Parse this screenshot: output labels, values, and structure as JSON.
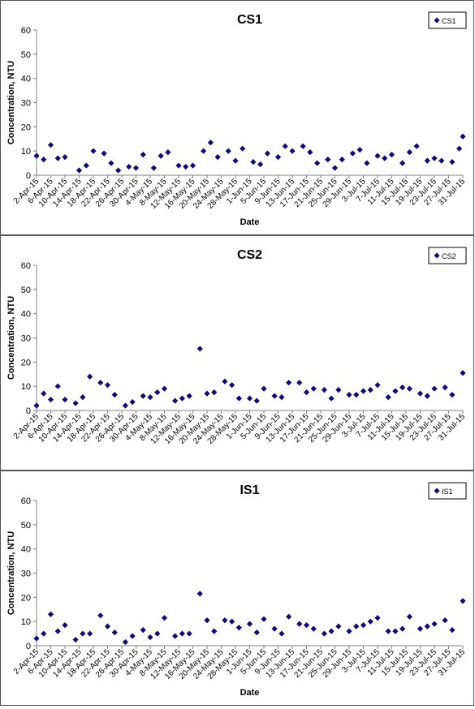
{
  "colors": {
    "marker": "#0a0a7a",
    "axis": "#808080",
    "text": "#000000"
  },
  "chart_data": [
    {
      "type": "scatter",
      "title": "CS1",
      "xlabel": "Date",
      "ylabel": "Concentration, NTU",
      "ylim": [
        0,
        60
      ],
      "yticks": [
        "0",
        "10",
        "20",
        "30",
        "40",
        "50",
        "60"
      ],
      "xtick_labels": [
        "2-Apr-15",
        "6-Apr-15",
        "10-Apr-15",
        "14-Apr-15",
        "18-Apr-15",
        "22-Apr-15",
        "26-Apr-15",
        "30-Apr-15",
        "4-May-15",
        "8-May-15",
        "12-May-15",
        "16-May-15",
        "20-May-15",
        "24-May-15",
        "28-May-15",
        "1-Jun-15",
        "5-Jun-15",
        "9-Jun-15",
        "13-Jun-15",
        "17-Jun-15",
        "21-Jun-15",
        "25-Jun-15",
        "29-Jun-15",
        "3-Jul-15",
        "7-Jul-15",
        "11-Jul-15",
        "15-Jul-15",
        "19-Jul-15",
        "23-Jul-15",
        "27-Jul-15",
        "31-Jul-15"
      ],
      "xlim": [
        "2015-04-02",
        "2015-07-31"
      ],
      "grid": false,
      "legend": "top-right",
      "series": [
        {
          "name": "CS1",
          "points": [
            [
              "2015-04-02",
              8.0
            ],
            [
              "2015-04-04",
              6.5
            ],
            [
              "2015-04-06",
              12.5
            ],
            [
              "2015-04-08",
              7.0
            ],
            [
              "2015-04-10",
              7.5
            ],
            [
              "2015-04-14",
              2.0
            ],
            [
              "2015-04-16",
              4.0
            ],
            [
              "2015-04-18",
              10.0
            ],
            [
              "2015-04-21",
              9.0
            ],
            [
              "2015-04-23",
              5.0
            ],
            [
              "2015-04-25",
              2.0
            ],
            [
              "2015-04-28",
              3.5
            ],
            [
              "2015-04-30",
              3.0
            ],
            [
              "2015-05-02",
              8.5
            ],
            [
              "2015-05-05",
              3.0
            ],
            [
              "2015-05-07",
              8.0
            ],
            [
              "2015-05-09",
              9.5
            ],
            [
              "2015-05-12",
              4.0
            ],
            [
              "2015-05-14",
              3.5
            ],
            [
              "2015-05-16",
              4.0
            ],
            [
              "2015-05-19",
              10.0
            ],
            [
              "2015-05-21",
              13.5
            ],
            [
              "2015-05-23",
              7.5
            ],
            [
              "2015-05-26",
              10.0
            ],
            [
              "2015-05-28",
              6.0
            ],
            [
              "2015-05-30",
              11.0
            ],
            [
              "2015-06-02",
              5.5
            ],
            [
              "2015-06-04",
              4.5
            ],
            [
              "2015-06-06",
              9.0
            ],
            [
              "2015-06-09",
              7.5
            ],
            [
              "2015-06-11",
              12.0
            ],
            [
              "2015-06-13",
              10.0
            ],
            [
              "2015-06-16",
              12.0
            ],
            [
              "2015-06-18",
              9.5
            ],
            [
              "2015-06-20",
              5.0
            ],
            [
              "2015-06-23",
              6.5
            ],
            [
              "2015-06-25",
              3.0
            ],
            [
              "2015-06-27",
              6.5
            ],
            [
              "2015-06-30",
              9.0
            ],
            [
              "2015-07-02",
              10.5
            ],
            [
              "2015-07-04",
              5.0
            ],
            [
              "2015-07-07",
              8.0
            ],
            [
              "2015-07-09",
              7.0
            ],
            [
              "2015-07-11",
              8.5
            ],
            [
              "2015-07-14",
              5.0
            ],
            [
              "2015-07-16",
              9.5
            ],
            [
              "2015-07-18",
              12.0
            ],
            [
              "2015-07-21",
              6.0
            ],
            [
              "2015-07-23",
              7.0
            ],
            [
              "2015-07-25",
              6.0
            ],
            [
              "2015-07-28",
              5.5
            ],
            [
              "2015-07-30",
              11.0
            ],
            [
              "2015-07-31",
              16.0
            ]
          ]
        }
      ]
    },
    {
      "type": "scatter",
      "title": "CS2",
      "xlabel": "",
      "ylabel": "Concentration, NTU",
      "ylim": [
        0,
        60
      ],
      "yticks": [
        "0",
        "10",
        "20",
        "30",
        "40",
        "50",
        "60"
      ],
      "xtick_labels": [
        "2-Apr-15",
        "6-Apr-15",
        "10-Apr-15",
        "14-Apr-15",
        "18-Apr-15",
        "22-Apr-15",
        "26-Apr-15",
        "30-Apr-15",
        "4-May-15",
        "8-May-15",
        "12-May-15",
        "16-May-15",
        "20-May-15",
        "24-May-15",
        "28-May-15",
        "1-Jun-15",
        "5-Jun-15",
        "9-Jun-15",
        "13-Jun-15",
        "17-Jun-15",
        "21-Jun-15",
        "25-Jun-15",
        "29-Jun-15",
        "3-Jul-15",
        "7-Jul-15",
        "11-Jul-15",
        "15-Jul-15",
        "19-Jul-15",
        "23-Jul-15",
        "27-Jul-15",
        "31-Jul-15"
      ],
      "xlim": [
        "2015-04-02",
        "2015-07-31"
      ],
      "grid": false,
      "legend": "top-right",
      "series": [
        {
          "name": "CS2",
          "points": [
            [
              "2015-04-02",
              2.0
            ],
            [
              "2015-04-04",
              7.0
            ],
            [
              "2015-04-06",
              4.5
            ],
            [
              "2015-04-08",
              10.0
            ],
            [
              "2015-04-10",
              4.5
            ],
            [
              "2015-04-13",
              3.0
            ],
            [
              "2015-04-15",
              5.5
            ],
            [
              "2015-04-17",
              14.0
            ],
            [
              "2015-04-20",
              11.5
            ],
            [
              "2015-04-22",
              10.5
            ],
            [
              "2015-04-24",
              6.5
            ],
            [
              "2015-04-27",
              2.0
            ],
            [
              "2015-04-29",
              3.5
            ],
            [
              "2015-05-02",
              6.0
            ],
            [
              "2015-05-04",
              5.5
            ],
            [
              "2015-05-06",
              7.5
            ],
            [
              "2015-05-08",
              9.0
            ],
            [
              "2015-05-11",
              4.0
            ],
            [
              "2015-05-13",
              5.0
            ],
            [
              "2015-05-15",
              6.0
            ],
            [
              "2015-05-18",
              25.5
            ],
            [
              "2015-05-20",
              7.0
            ],
            [
              "2015-05-22",
              7.5
            ],
            [
              "2015-05-25",
              12.0
            ],
            [
              "2015-05-27",
              10.5
            ],
            [
              "2015-05-29",
              5.0
            ],
            [
              "2015-06-01",
              5.0
            ],
            [
              "2015-06-03",
              4.0
            ],
            [
              "2015-06-05",
              9.0
            ],
            [
              "2015-06-08",
              6.0
            ],
            [
              "2015-06-10",
              5.5
            ],
            [
              "2015-06-12",
              11.5
            ],
            [
              "2015-06-15",
              11.5
            ],
            [
              "2015-06-17",
              7.5
            ],
            [
              "2015-06-19",
              9.0
            ],
            [
              "2015-06-22",
              8.5
            ],
            [
              "2015-06-24",
              5.0
            ],
            [
              "2015-06-26",
              8.5
            ],
            [
              "2015-06-29",
              6.5
            ],
            [
              "2015-07-01",
              6.5
            ],
            [
              "2015-07-03",
              8.0
            ],
            [
              "2015-07-05",
              8.5
            ],
            [
              "2015-07-07",
              10.5
            ],
            [
              "2015-07-10",
              5.5
            ],
            [
              "2015-07-12",
              8.0
            ],
            [
              "2015-07-14",
              9.5
            ],
            [
              "2015-07-16",
              9.0
            ],
            [
              "2015-07-19",
              7.0
            ],
            [
              "2015-07-21",
              6.0
            ],
            [
              "2015-07-23",
              9.0
            ],
            [
              "2015-07-26",
              9.5
            ],
            [
              "2015-07-28",
              6.5
            ],
            [
              "2015-07-31",
              15.5
            ]
          ]
        }
      ]
    },
    {
      "type": "scatter",
      "title": "IS1",
      "xlabel": "Date",
      "ylabel": "Concentration, NTU",
      "ylim": [
        0,
        60
      ],
      "yticks": [
        "0",
        "10",
        "20",
        "30",
        "40",
        "50",
        "60"
      ],
      "xtick_labels": [
        "2-Apr-15",
        "6-Apr-15",
        "10-Apr-15",
        "14-Apr-15",
        "18-Apr-15",
        "22-Apr-15",
        "26-Apr-15",
        "30-Apr-15",
        "4-May-15",
        "8-May-15",
        "12-May-15",
        "16-May-15",
        "20-May-15",
        "24-May-15",
        "28-May-15",
        "1-Jun-15",
        "5-Jun-15",
        "9-Jun-15",
        "13-Jun-15",
        "17-Jun-15",
        "21-Jun-15",
        "25-Jun-15",
        "29-Jun-15",
        "3-Jul-15",
        "7-Jul-15",
        "11-Jul-15",
        "15-Jul-15",
        "19-Jul-15",
        "23-Jul-15",
        "27-Jul-15",
        "31-Jul-15"
      ],
      "xlim": [
        "2015-04-02",
        "2015-07-31"
      ],
      "grid": false,
      "legend": "top-right",
      "series": [
        {
          "name": "IS1",
          "points": [
            [
              "2015-04-02",
              3.0
            ],
            [
              "2015-04-04",
              5.0
            ],
            [
              "2015-04-06",
              13.0
            ],
            [
              "2015-04-08",
              6.0
            ],
            [
              "2015-04-10",
              8.5
            ],
            [
              "2015-04-13",
              2.5
            ],
            [
              "2015-04-15",
              5.0
            ],
            [
              "2015-04-17",
              5.0
            ],
            [
              "2015-04-20",
              12.5
            ],
            [
              "2015-04-22",
              8.0
            ],
            [
              "2015-04-24",
              5.5
            ],
            [
              "2015-04-27",
              1.5
            ],
            [
              "2015-04-29",
              4.0
            ],
            [
              "2015-05-02",
              6.5
            ],
            [
              "2015-05-04",
              3.5
            ],
            [
              "2015-05-06",
              5.0
            ],
            [
              "2015-05-08",
              11.5
            ],
            [
              "2015-05-11",
              4.0
            ],
            [
              "2015-05-13",
              5.0
            ],
            [
              "2015-05-15",
              5.0
            ],
            [
              "2015-05-18",
              21.5
            ],
            [
              "2015-05-20",
              10.5
            ],
            [
              "2015-05-22",
              6.0
            ],
            [
              "2015-05-25",
              10.5
            ],
            [
              "2015-05-27",
              10.0
            ],
            [
              "2015-05-29",
              7.5
            ],
            [
              "2015-06-01",
              9.0
            ],
            [
              "2015-06-03",
              5.5
            ],
            [
              "2015-06-05",
              11.0
            ],
            [
              "2015-06-08",
              7.0
            ],
            [
              "2015-06-10",
              5.0
            ],
            [
              "2015-06-12",
              12.0
            ],
            [
              "2015-06-15",
              9.0
            ],
            [
              "2015-06-17",
              8.5
            ],
            [
              "2015-06-19",
              7.0
            ],
            [
              "2015-06-22",
              5.0
            ],
            [
              "2015-06-24",
              6.0
            ],
            [
              "2015-06-26",
              8.0
            ],
            [
              "2015-06-29",
              6.0
            ],
            [
              "2015-07-01",
              8.0
            ],
            [
              "2015-07-03",
              8.5
            ],
            [
              "2015-07-05",
              10.0
            ],
            [
              "2015-07-07",
              11.5
            ],
            [
              "2015-07-10",
              6.0
            ],
            [
              "2015-07-12",
              6.0
            ],
            [
              "2015-07-14",
              7.0
            ],
            [
              "2015-07-16",
              12.0
            ],
            [
              "2015-07-19",
              7.0
            ],
            [
              "2015-07-21",
              8.0
            ],
            [
              "2015-07-23",
              9.0
            ],
            [
              "2015-07-26",
              10.5
            ],
            [
              "2015-07-28",
              6.5
            ],
            [
              "2015-07-31",
              18.5
            ]
          ]
        }
      ]
    }
  ]
}
